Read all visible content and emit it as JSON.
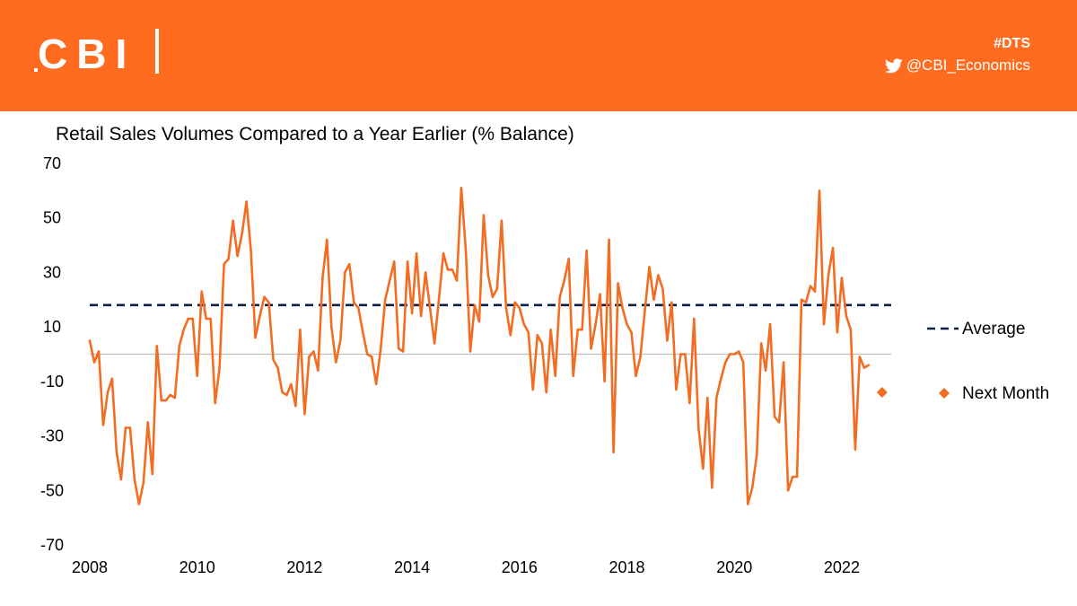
{
  "header": {
    "logo_text": "CBI",
    "hashtag": "#DTS",
    "handle": "@CBI_Economics",
    "handle_icon": "twitter-bird-icon"
  },
  "colors": {
    "brand_orange": "#FF6B1F",
    "series": "#F26C21",
    "average": "#0E1E45",
    "zero_line": "#BFBFBF"
  },
  "chart_data": {
    "type": "line",
    "title": "Retail Sales Volumes Compared to a Year Earlier (% Balance)",
    "xlabel": "",
    "ylabel": "",
    "xlim": [
      2008,
      2022.92
    ],
    "ylim": [
      -70,
      70
    ],
    "x_ticks": [
      "2008",
      "2010",
      "2012",
      "2014",
      "2016",
      "2018",
      "2020",
      "2022"
    ],
    "y_ticks": [
      "70",
      "50",
      "30",
      "10",
      "-10",
      "-30",
      "-50",
      "-70"
    ],
    "grid": false,
    "legend_position": "right",
    "series": [
      {
        "name": "",
        "x_start": 2008,
        "step_months": 1,
        "values": [
          5,
          -3,
          1,
          -26,
          -14,
          -9,
          -36,
          -46,
          -27,
          -27,
          -46,
          -55,
          -47,
          -25,
          -44,
          3,
          -17,
          -17,
          -15,
          -16,
          3,
          9,
          13,
          13,
          -8,
          23,
          13,
          13,
          -18,
          -5,
          33,
          35,
          49,
          36,
          44,
          56,
          38,
          6,
          14,
          21,
          19,
          -2,
          -5,
          -14,
          -15,
          -11,
          -19,
          9,
          -22,
          -1,
          1,
          -6,
          28,
          42,
          10,
          -3,
          5,
          30,
          33,
          19,
          17,
          8,
          0,
          -1,
          -11,
          2,
          20,
          27,
          34,
          2,
          1,
          34,
          15,
          37,
          14,
          30,
          17,
          4,
          20,
          37,
          31,
          31,
          27,
          61,
          38,
          1,
          18,
          12,
          51,
          29,
          21,
          24,
          49,
          17,
          7,
          19,
          17,
          11,
          8,
          -13,
          7,
          4,
          -14,
          9,
          -8,
          21,
          27,
          35,
          -8,
          9,
          9,
          38,
          2,
          11,
          22,
          -10,
          42,
          -36,
          26,
          17,
          11,
          8,
          -8,
          -1,
          16,
          32,
          20,
          29,
          24,
          5,
          19,
          -13,
          0,
          0,
          -18,
          13,
          -27,
          -42,
          -16,
          -49,
          -16,
          -9,
          -3,
          0,
          0,
          1,
          -3,
          -55,
          -49,
          -37,
          4,
          -6,
          11,
          -23,
          -25,
          -3,
          -50,
          -45,
          -45,
          20,
          19,
          25,
          23,
          60,
          11,
          29,
          39,
          8,
          28,
          14,
          9,
          -35,
          -1,
          -5,
          -4
        ]
      }
    ],
    "average": {
      "name": "Average",
      "value": 18
    },
    "next_month": {
      "name": "Next Month",
      "x": 2022.75,
      "value": -14
    }
  }
}
